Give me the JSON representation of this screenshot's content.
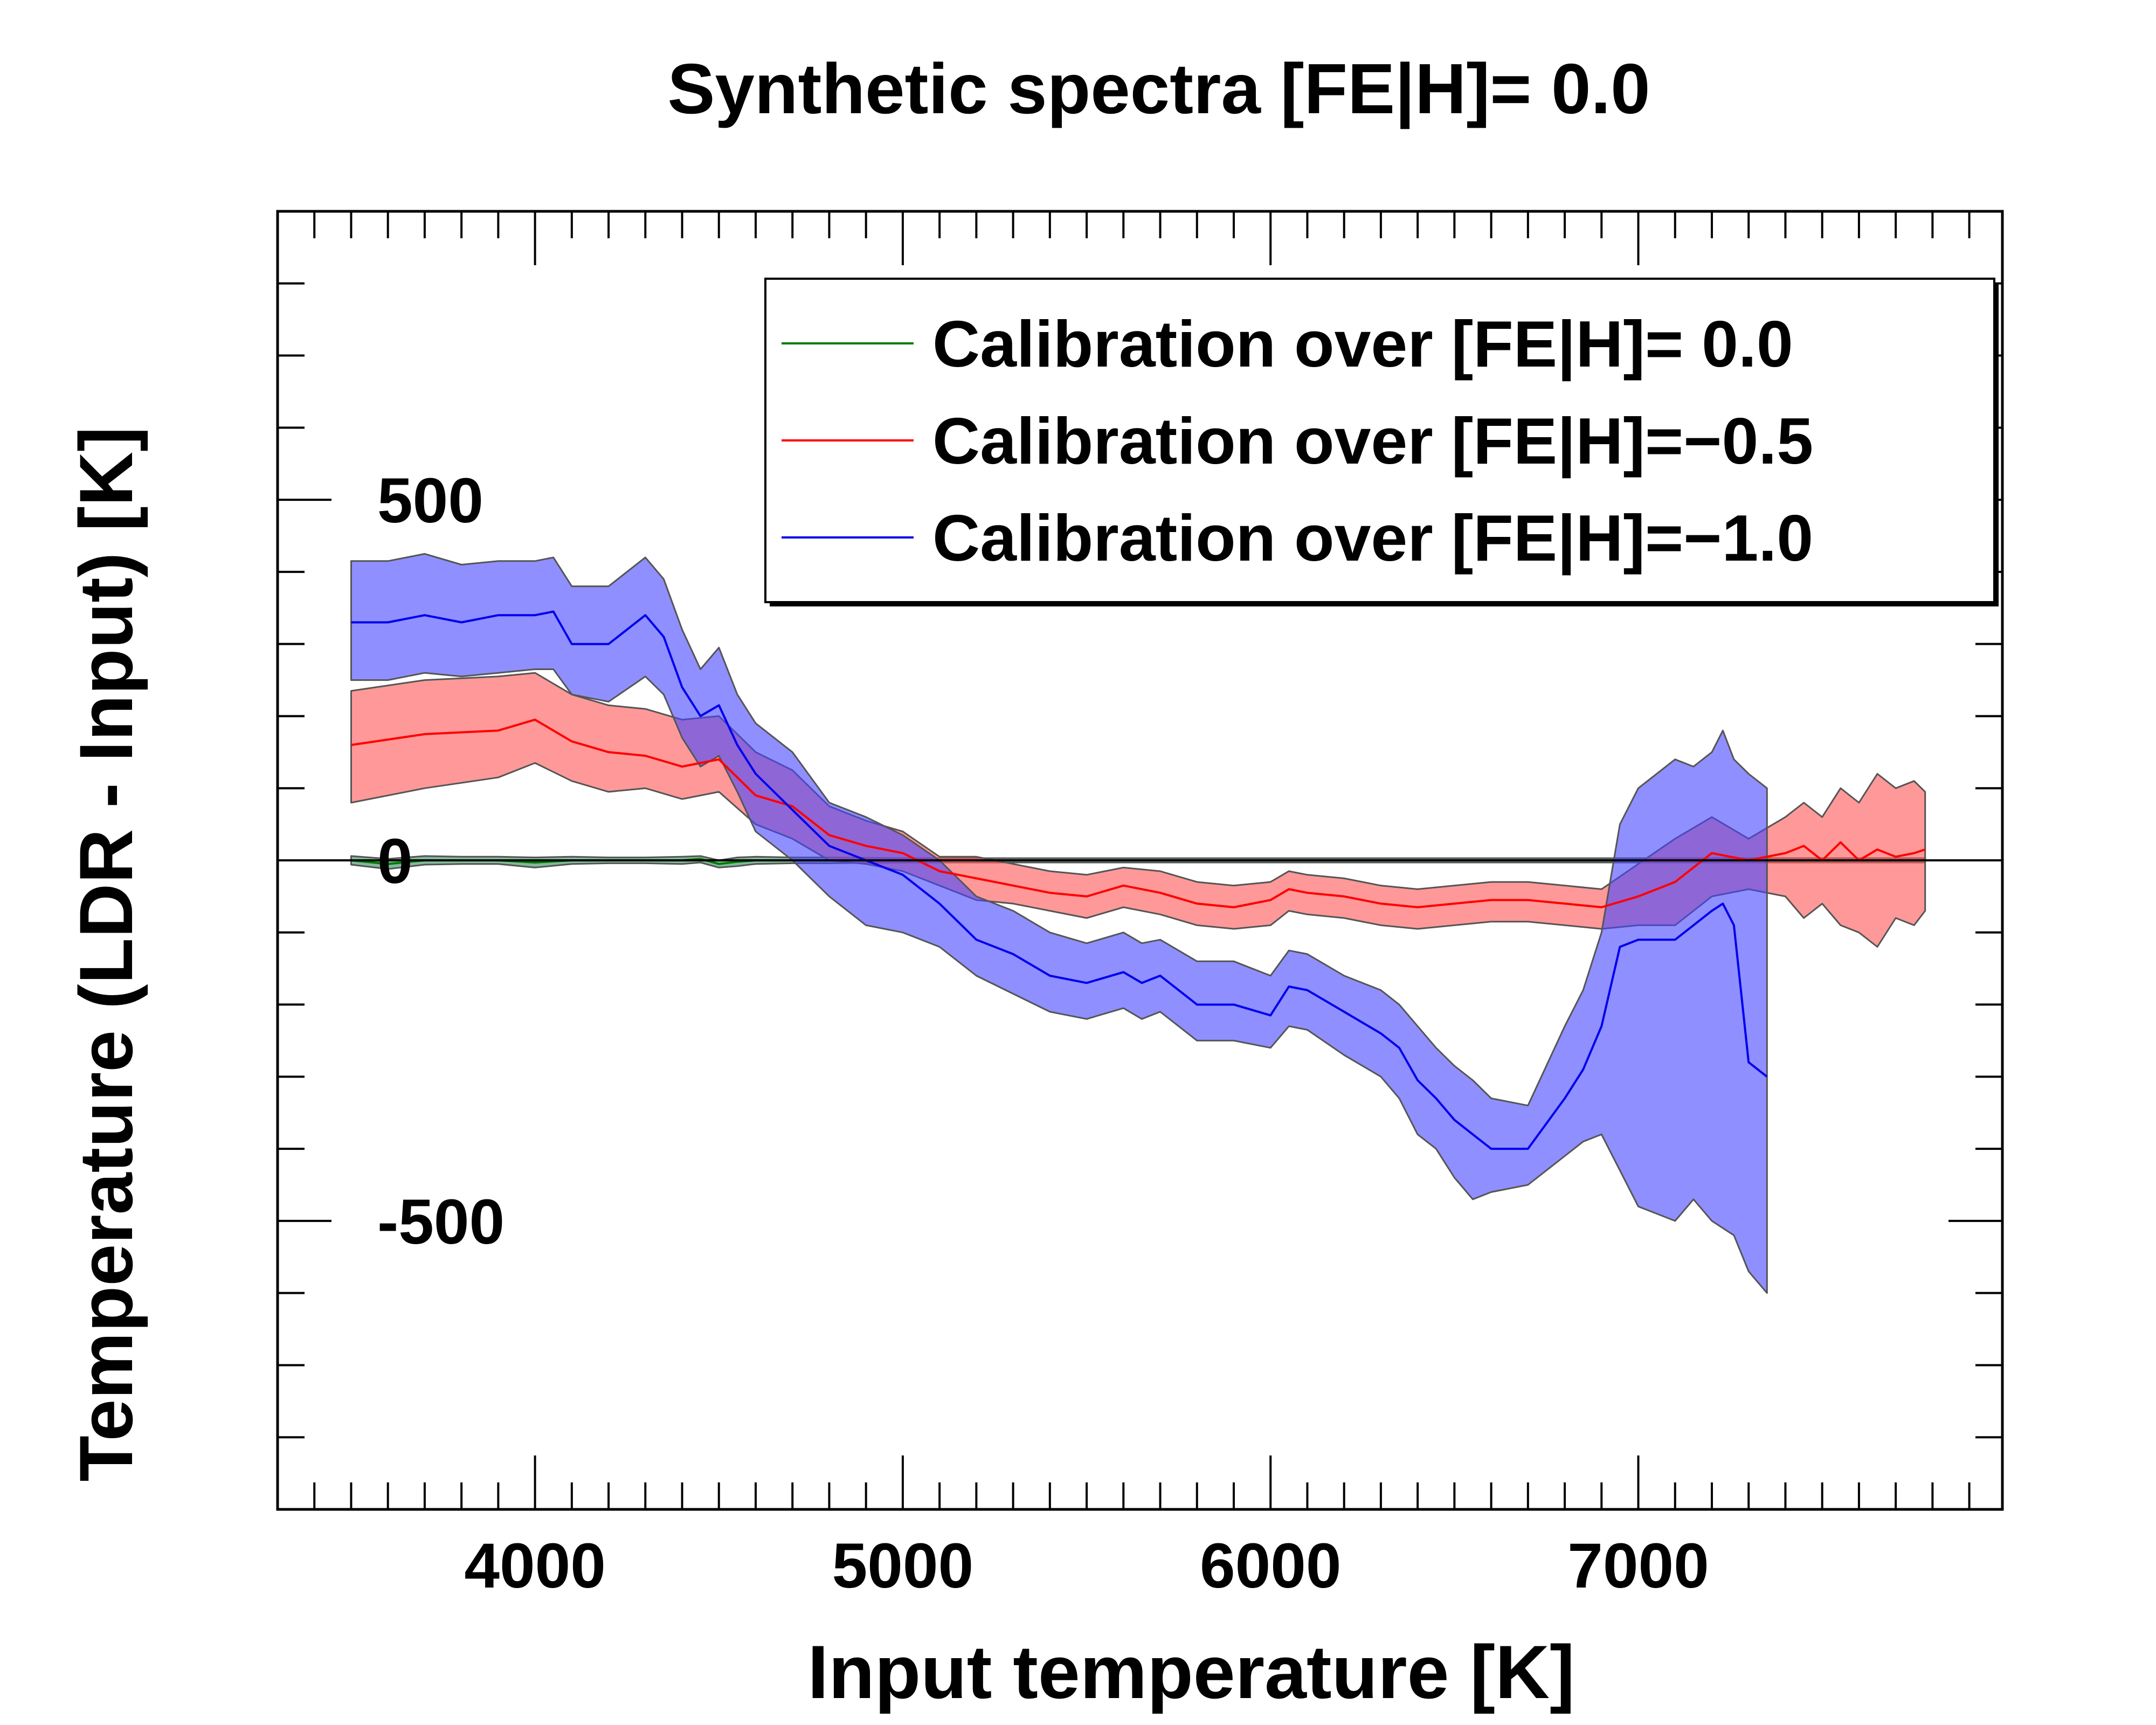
{
  "chart_data": {
    "type": "line",
    "title": "Synthetic spectra [FE|H]= 0.0",
    "xlabel": "Input temperature [K]",
    "ylabel": "Temperature (LDR - Input) [K]",
    "xlim": [
      3300,
      7990
    ],
    "ylim": [
      -900,
      900
    ],
    "x_ticks": [
      4000,
      5000,
      6000,
      7000
    ],
    "x_tick_labels": [
      "4000",
      "5000",
      "6000",
      "7000"
    ],
    "y_ticks": [
      500,
      0,
      -500
    ],
    "y_tick_labels": [
      "500",
      "0",
      "-500"
    ],
    "legend_location": "top-right",
    "series": [
      {
        "name": "Calibration over [FE|H]= 0.0",
        "legend_label": "Calibration over [FE|H]= 0.0",
        "line_color": "#007a00",
        "fill_color": "#2e8b57",
        "x": [
          3500,
          3600,
          3700,
          3800,
          3900,
          4000,
          4100,
          4200,
          4300,
          4400,
          4450,
          4500,
          4550,
          4600,
          4700,
          4800,
          5000,
          5500,
          6000,
          6500,
          7000,
          7500,
          7780
        ],
        "value": [
          0,
          -5,
          0,
          0,
          0,
          -3,
          0,
          0,
          0,
          0,
          2,
          -5,
          -2,
          0,
          0,
          0,
          0,
          0,
          0,
          0,
          0,
          0,
          0
        ],
        "lower": [
          -6,
          -12,
          -6,
          -5,
          -5,
          -10,
          -5,
          -4,
          -4,
          -5,
          -3,
          -10,
          -8,
          -5,
          -4,
          -4,
          -3,
          -3,
          -3,
          -3,
          -3,
          -3,
          -3
        ],
        "upper": [
          6,
          2,
          6,
          5,
          5,
          4,
          5,
          4,
          4,
          5,
          6,
          0,
          4,
          5,
          4,
          4,
          3,
          3,
          3,
          3,
          3,
          3,
          3
        ]
      },
      {
        "name": "Calibration over [FE|H]=-0.5",
        "legend_label": "Calibration over [FE|H]=−0.5",
        "line_color": "#ff0000",
        "fill_color": "#ff5555",
        "x": [
          3500,
          3700,
          3900,
          4000,
          4100,
          4200,
          4300,
          4400,
          4500,
          4600,
          4700,
          4800,
          4900,
          5000,
          5100,
          5200,
          5300,
          5400,
          5500,
          5600,
          5700,
          5800,
          5900,
          6000,
          6050,
          6100,
          6200,
          6300,
          6400,
          6500,
          6600,
          6700,
          6800,
          6900,
          7000,
          7100,
          7200,
          7300,
          7400,
          7450,
          7500,
          7550,
          7600,
          7650,
          7700,
          7750,
          7780
        ],
        "value": [
          160,
          175,
          180,
          195,
          165,
          150,
          145,
          130,
          140,
          90,
          75,
          35,
          20,
          10,
          -15,
          -25,
          -35,
          -45,
          -50,
          -35,
          -45,
          -60,
          -65,
          -55,
          -40,
          -45,
          -50,
          -60,
          -65,
          -60,
          -55,
          -55,
          -60,
          -65,
          -50,
          -30,
          10,
          0,
          10,
          20,
          0,
          25,
          0,
          15,
          5,
          10,
          15
        ],
        "lower": [
          80,
          100,
          115,
          135,
          110,
          95,
          100,
          85,
          95,
          50,
          30,
          0,
          -5,
          -15,
          -35,
          -55,
          -60,
          -70,
          -80,
          -65,
          -75,
          -90,
          -95,
          -90,
          -70,
          -75,
          -80,
          -90,
          -95,
          -90,
          -85,
          -85,
          -90,
          -95,
          -90,
          -90,
          -50,
          -40,
          -50,
          -80,
          -60,
          -90,
          -100,
          -120,
          -80,
          -90,
          -70
        ],
        "upper": [
          235,
          250,
          255,
          260,
          230,
          215,
          210,
          195,
          200,
          150,
          125,
          75,
          55,
          40,
          5,
          5,
          -5,
          -15,
          -20,
          -10,
          -15,
          -30,
          -35,
          -30,
          -15,
          -20,
          -25,
          -35,
          -40,
          -35,
          -30,
          -30,
          -35,
          -40,
          -5,
          30,
          60,
          30,
          60,
          80,
          60,
          100,
          80,
          120,
          100,
          110,
          95
        ]
      },
      {
        "name": "Calibration over [FE|H]=-1.0",
        "legend_label": "Calibration over [FE|H]=−1.0",
        "line_color": "#0000ee",
        "fill_color": "#4444ff",
        "x": [
          3500,
          3600,
          3700,
          3800,
          3900,
          4000,
          4050,
          4100,
          4200,
          4300,
          4350,
          4400,
          4450,
          4500,
          4550,
          4600,
          4700,
          4800,
          4900,
          5000,
          5100,
          5200,
          5300,
          5400,
          5500,
          5600,
          5650,
          5700,
          5800,
          5900,
          6000,
          6050,
          6100,
          6200,
          6300,
          6350,
          6400,
          6450,
          6500,
          6550,
          6600,
          6700,
          6800,
          6850,
          6900,
          6950,
          7000,
          7100,
          7150,
          7200,
          7230,
          7260,
          7300,
          7350
        ],
        "value": [
          330,
          330,
          340,
          330,
          340,
          340,
          345,
          300,
          300,
          340,
          310,
          240,
          200,
          215,
          160,
          120,
          70,
          20,
          0,
          -20,
          -60,
          -110,
          -130,
          -160,
          -170,
          -155,
          -170,
          -160,
          -200,
          -200,
          -215,
          -175,
          -180,
          -210,
          -240,
          -260,
          -305,
          -330,
          -360,
          -380,
          -400,
          -400,
          -330,
          -290,
          -230,
          -120,
          -110,
          -110,
          -90,
          -70,
          -60,
          -90,
          -280,
          -300
        ],
        "lower": [
          250,
          250,
          260,
          255,
          260,
          265,
          265,
          230,
          220,
          255,
          230,
          170,
          130,
          145,
          95,
          40,
          0,
          -50,
          -90,
          -100,
          -120,
          -160,
          -185,
          -210,
          -220,
          -205,
          -220,
          -210,
          -250,
          -250,
          -260,
          -230,
          -235,
          -270,
          -300,
          -330,
          -380,
          -400,
          -440,
          -470,
          -460,
          -450,
          -410,
          -390,
          -380,
          -430,
          -480,
          -500,
          -470,
          -500,
          -510,
          -520,
          -570,
          -600
        ],
        "upper": [
          415,
          415,
          425,
          410,
          415,
          415,
          420,
          380,
          380,
          420,
          390,
          320,
          265,
          295,
          230,
          190,
          150,
          80,
          60,
          35,
          0,
          -50,
          -70,
          -100,
          -115,
          -100,
          -115,
          -110,
          -140,
          -140,
          -160,
          -125,
          -130,
          -160,
          -180,
          -200,
          -230,
          -260,
          -285,
          -305,
          -330,
          -340,
          -230,
          -180,
          -100,
          50,
          100,
          140,
          130,
          150,
          180,
          140,
          120,
          100
        ]
      }
    ]
  }
}
